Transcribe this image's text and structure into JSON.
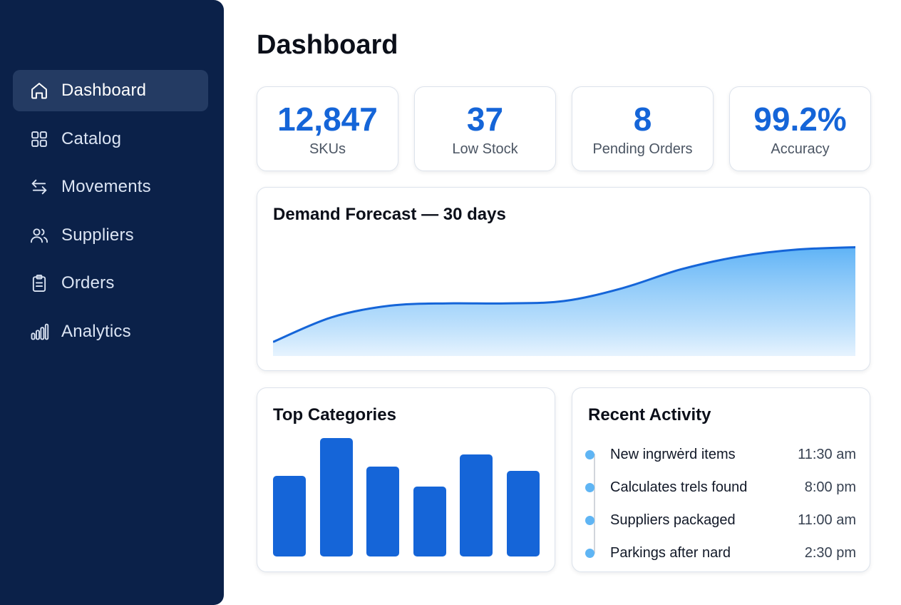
{
  "sidebar": {
    "items": [
      {
        "label": "Dashboard",
        "icon": "home-icon",
        "active": true
      },
      {
        "label": "Catalog",
        "icon": "grid-icon",
        "active": false
      },
      {
        "label": "Movements",
        "icon": "arrows-icon",
        "active": false
      },
      {
        "label": "Suppliers",
        "icon": "users-icon",
        "active": false
      },
      {
        "label": "Orders",
        "icon": "clipboard-icon",
        "active": false
      },
      {
        "label": "Analytics",
        "icon": "bar-chart-icon",
        "active": false
      }
    ]
  },
  "page": {
    "title": "Dashboard"
  },
  "kpis": [
    {
      "value": "12,847",
      "label": "SKUs"
    },
    {
      "value": "37",
      "label": "Low Stock"
    },
    {
      "value": "8",
      "label": "Pending Orders"
    },
    {
      "value": "99.2%",
      "label": "Accuracy"
    }
  ],
  "forecast": {
    "title": "Demand Forecast — 30 days"
  },
  "categories": {
    "title": "Top Categories"
  },
  "activity": {
    "title": "Recent Activity",
    "items": [
      {
        "text": "New ingrwėrd items",
        "time": "11:30 am"
      },
      {
        "text": "Calculates trels found",
        "time": "8:00 pm"
      },
      {
        "text": "Suppliers packaged",
        "time": "11:00 am"
      },
      {
        "text": "Parkings after nard",
        "time": "2:30 pm"
      }
    ]
  },
  "colors": {
    "sidebar_bg": "#0b2149",
    "accent": "#1565d8",
    "area_fill": "#63b8f7",
    "activity_dot": "#5fb5f4"
  },
  "chart_data": [
    {
      "type": "area",
      "title": "Demand Forecast — 30 days",
      "x": [
        0,
        3,
        6,
        9,
        12,
        15,
        18,
        21,
        24,
        27,
        30
      ],
      "values": [
        0.12,
        0.33,
        0.43,
        0.45,
        0.45,
        0.47,
        0.58,
        0.74,
        0.85,
        0.91,
        0.93
      ],
      "ylim": [
        0,
        1
      ],
      "grid": false
    },
    {
      "type": "bar",
      "title": "Top Categories",
      "values": [
        0.68,
        1.0,
        0.76,
        0.59,
        0.86,
        0.72
      ],
      "ylim": [
        0,
        1
      ],
      "grid": false
    }
  ]
}
